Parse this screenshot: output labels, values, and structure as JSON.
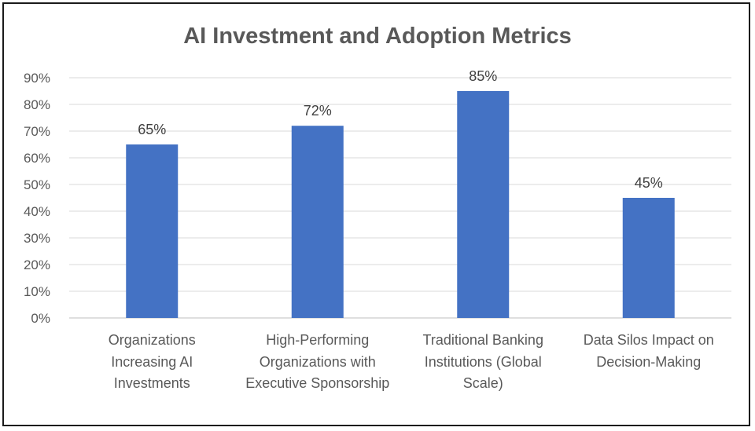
{
  "chart_data": {
    "type": "bar",
    "title": "AI Investment and Adoption Metrics",
    "xlabel": "",
    "ylabel": "",
    "categories": [
      "Organizations Increasing AI Investments",
      "High-Performing Organizations with Executive Sponsorship",
      "Traditional Banking Institutions (Global Scale)",
      "Data Silos Impact on Decision-Making"
    ],
    "values": [
      65,
      72,
      85,
      45
    ],
    "data_labels": [
      "65%",
      "72%",
      "85%",
      "45%"
    ],
    "ylim": [
      0,
      90
    ],
    "yticks": [
      0,
      10,
      20,
      30,
      40,
      50,
      60,
      70,
      80,
      90
    ],
    "ytick_labels": [
      "0%",
      "10%",
      "20%",
      "30%",
      "40%",
      "50%",
      "60%",
      "70%",
      "80%",
      "90%"
    ],
    "grid": true,
    "legend": "none",
    "bar_color": "#4472C4"
  }
}
